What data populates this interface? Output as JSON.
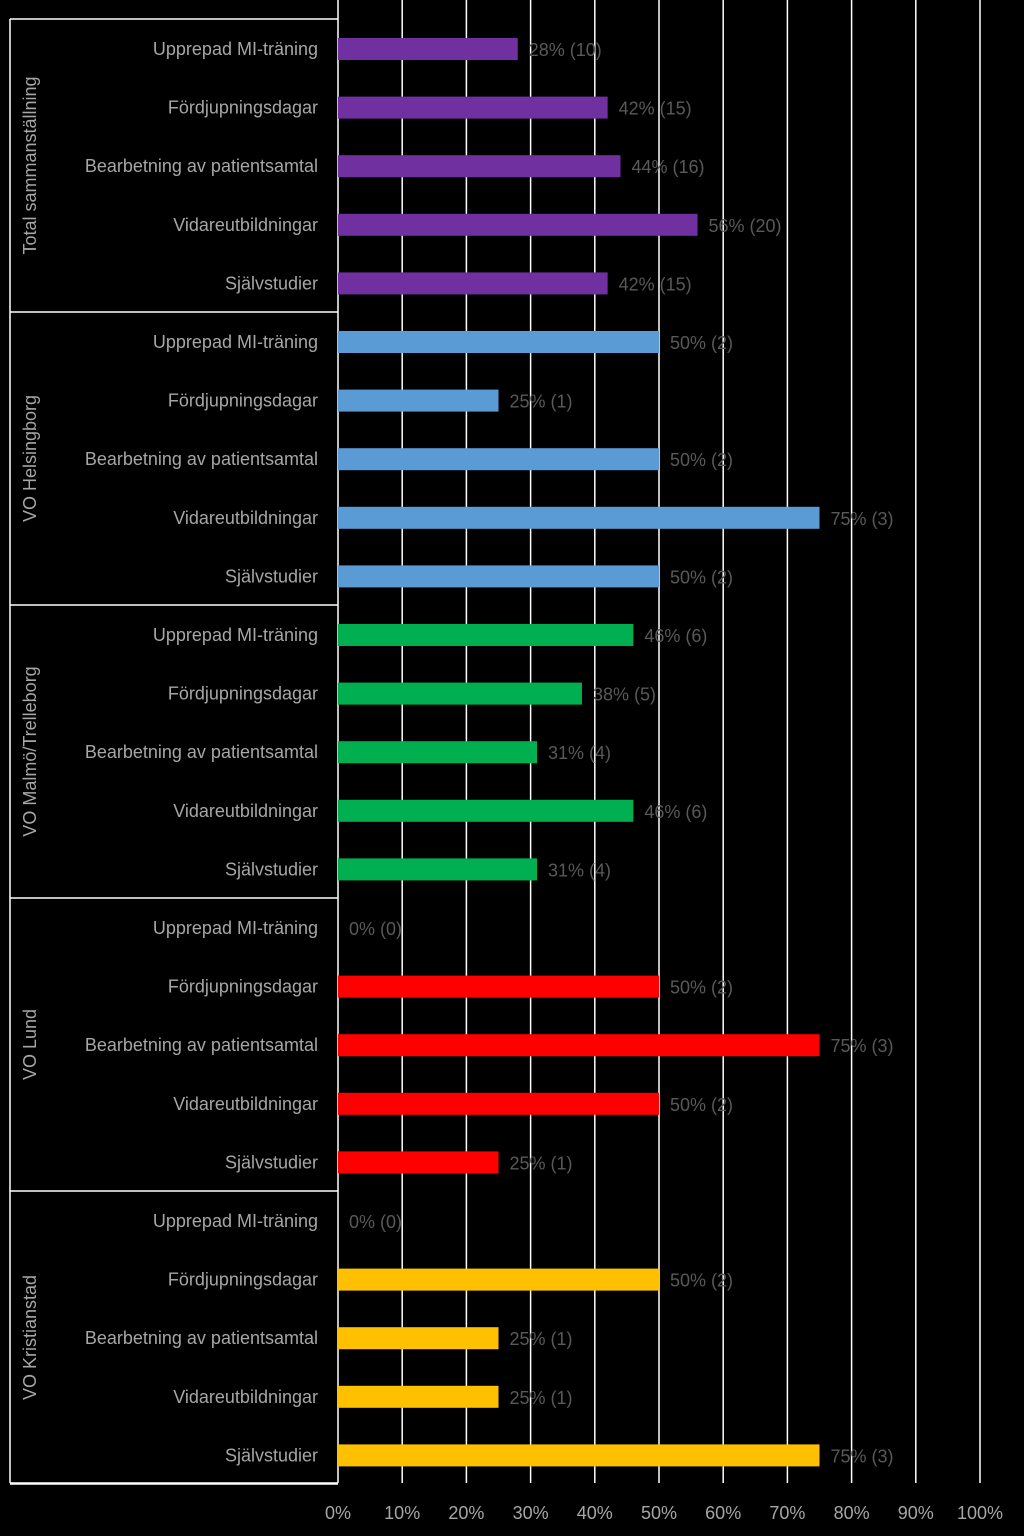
{
  "chart_data": {
    "type": "bar",
    "orientation": "horizontal",
    "xlim": [
      0,
      100
    ],
    "x_ticks": [
      "0%",
      "10%",
      "20%",
      "30%",
      "40%",
      "50%",
      "60%",
      "70%",
      "80%",
      "90%",
      "100%"
    ],
    "grid": true,
    "background": "#000000",
    "groups": [
      {
        "name": "Total sammanställning",
        "color": "#7030a0",
        "items": [
          {
            "category": "Upprepad MI-träning",
            "value": 28,
            "label": "28% (10)"
          },
          {
            "category": "Fördjupningsdagar",
            "value": 42,
            "label": "42% (15)"
          },
          {
            "category": "Bearbetning av patientsamtal",
            "value": 44,
            "label": "44% (16)"
          },
          {
            "category": "Vidareutbildningar",
            "value": 56,
            "label": "56% (20)"
          },
          {
            "category": "Självstudier",
            "value": 42,
            "label": "42% (15)"
          }
        ]
      },
      {
        "name": "VO Helsingborg",
        "color": "#5b9bd5",
        "items": [
          {
            "category": "Upprepad MI-träning",
            "value": 50,
            "label": "50% (2)"
          },
          {
            "category": "Fördjupningsdagar",
            "value": 25,
            "label": "25% (1)"
          },
          {
            "category": "Bearbetning av patientsamtal",
            "value": 50,
            "label": "50% (2)"
          },
          {
            "category": "Vidareutbildningar",
            "value": 75,
            "label": "75% (3)"
          },
          {
            "category": "Självstudier",
            "value": 50,
            "label": "50% (2)"
          }
        ]
      },
      {
        "name": "VO Malmö/Trelleborg",
        "color": "#00b050",
        "items": [
          {
            "category": "Upprepad MI-träning",
            "value": 46,
            "label": "46% (6)"
          },
          {
            "category": "Fördjupningsdagar",
            "value": 38,
            "label": "38% (5)"
          },
          {
            "category": "Bearbetning av patientsamtal",
            "value": 31,
            "label": "31% (4)"
          },
          {
            "category": "Vidareutbildningar",
            "value": 46,
            "label": "46% (6)"
          },
          {
            "category": "Självstudier",
            "value": 31,
            "label": "31% (4)"
          }
        ]
      },
      {
        "name": "VO Lund",
        "color": "#ff0000",
        "items": [
          {
            "category": "Upprepad MI-träning",
            "value": 0,
            "label": "0% (0)"
          },
          {
            "category": "Fördjupningsdagar",
            "value": 50,
            "label": "50% (2)"
          },
          {
            "category": "Bearbetning av patientsamtal",
            "value": 75,
            "label": "75% (3)"
          },
          {
            "category": "Vidareutbildningar",
            "value": 50,
            "label": "50% (2)"
          },
          {
            "category": "Självstudier",
            "value": 25,
            "label": "25% (1)"
          }
        ]
      },
      {
        "name": "VO Kristianstad",
        "color": "#ffc000",
        "items": [
          {
            "category": "Upprepad MI-träning",
            "value": 0,
            "label": "0% (0)"
          },
          {
            "category": "Fördjupningsdagar",
            "value": 50,
            "label": "50% (2)"
          },
          {
            "category": "Bearbetning av patientsamtal",
            "value": 25,
            "label": "25% (1)"
          },
          {
            "category": "Vidareutbildningar",
            "value": 25,
            "label": "25% (1)"
          },
          {
            "category": "Självstudier",
            "value": 75,
            "label": "75% (3)"
          }
        ]
      }
    ]
  }
}
